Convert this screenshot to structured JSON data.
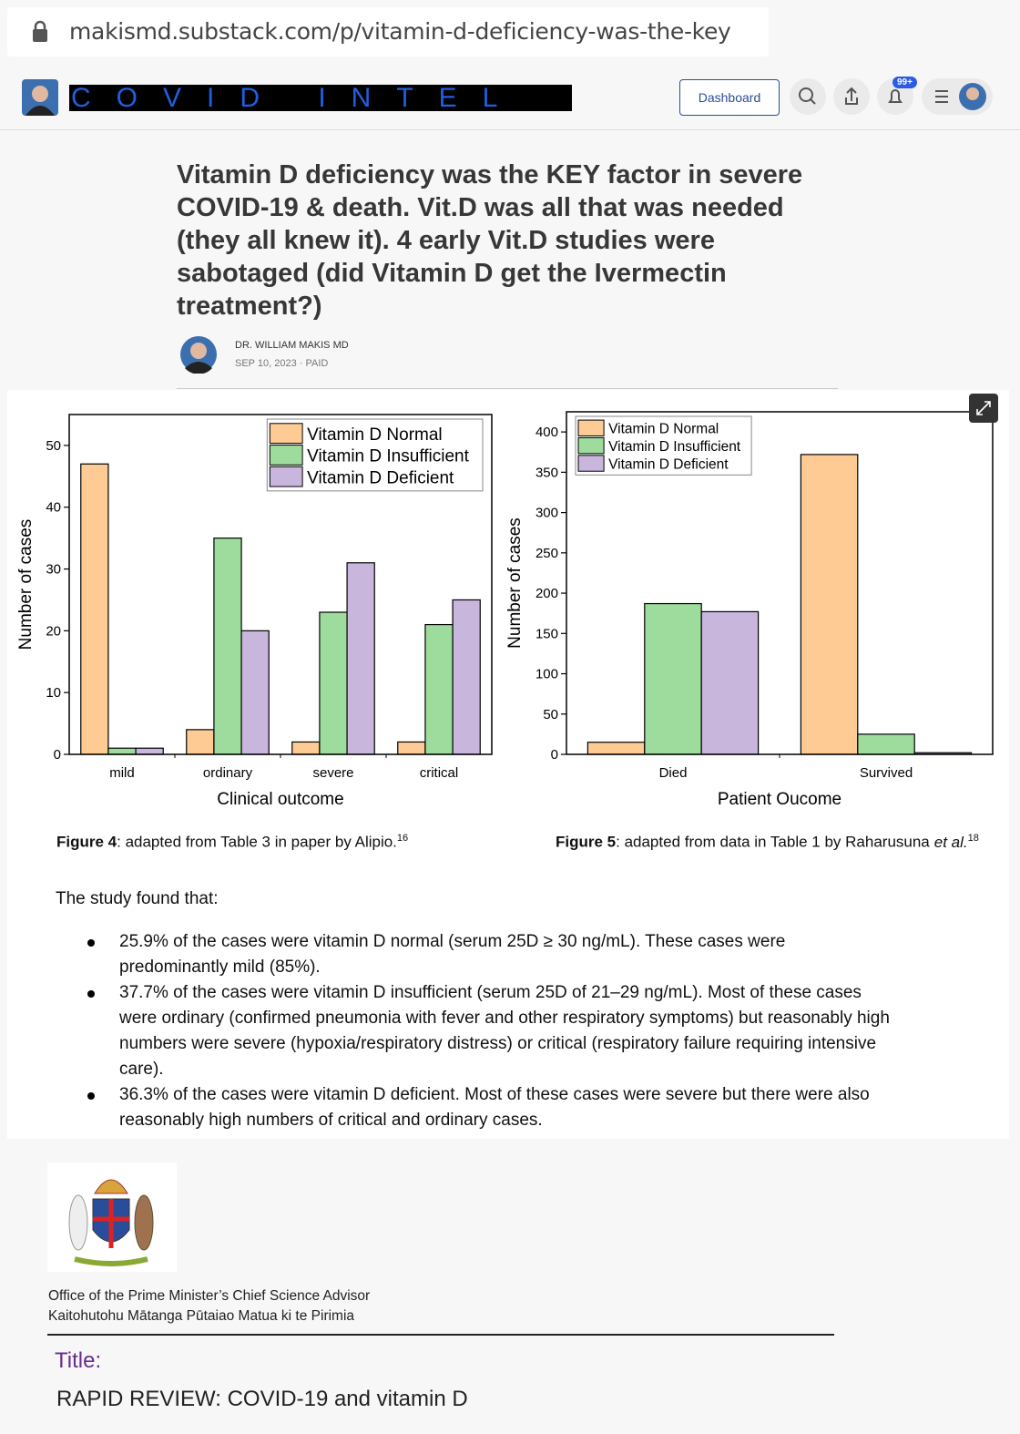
{
  "browser": {
    "url": "makismd.substack.com/p/vitamin-d-deficiency-was-the-key"
  },
  "header": {
    "publication": "COVID INTEL",
    "dashboard": "Dashboard",
    "notifications": "99+"
  },
  "article": {
    "title": "Vitamin D deficiency was the KEY factor in severe COVID-19 & death. Vit.D was all that was needed (they all knew it). 4 early Vit.D studies were sabotaged (did Vitamin D get the Ivermectin treatment?)",
    "author": "DR. WILLIAM MAKIS MD",
    "meta": "SEP 10, 2023 · PAID"
  },
  "chart_data": [
    {
      "type": "bar",
      "categories": [
        "mild",
        "ordinary",
        "severe",
        "critical"
      ],
      "series": [
        {
          "name": "Vitamin D Normal",
          "color": "#fdcb93",
          "values": [
            47,
            4,
            2,
            2
          ]
        },
        {
          "name": "Vitamin D Insufficient",
          "color": "#9edc9e",
          "values": [
            1,
            35,
            23,
            21
          ]
        },
        {
          "name": "Vitamin D Deficient",
          "color": "#c9b6dd",
          "values": [
            1,
            20,
            31,
            25
          ]
        }
      ],
      "xlabel": "Clinical outcome",
      "ylabel": "Number of cases",
      "ylim": [
        0,
        55
      ],
      "yticks": [
        0,
        10,
        20,
        30,
        40,
        50
      ],
      "legend": "upper right",
      "grid": false
    },
    {
      "type": "bar",
      "categories": [
        "Died",
        "Survived"
      ],
      "series": [
        {
          "name": "Vitamin D Normal",
          "color": "#fdcb93",
          "values": [
            15,
            372
          ]
        },
        {
          "name": "Vitamin D Insufficient",
          "color": "#9edc9e",
          "values": [
            187,
            25
          ]
        },
        {
          "name": "Vitamin D Deficient",
          "color": "#c9b6dd",
          "values": [
            177,
            2
          ]
        }
      ],
      "xlabel": "Patient Oucome",
      "ylabel": "Number of cases",
      "ylim": [
        0,
        425
      ],
      "yticks": [
        0,
        50,
        100,
        150,
        200,
        250,
        300,
        350,
        400
      ],
      "legend": "upper left",
      "grid": false
    }
  ],
  "captions": [
    {
      "label": "Figure 4",
      "text": ": adapted from Table 3 in paper by Alipio.",
      "ref": "16"
    },
    {
      "label": "Figure 5",
      "text": ": adapted from data in Table 1 by Raharusuna",
      "emphasis": "et al.",
      "ref": "18"
    }
  ],
  "body": {
    "intro": "The study found that:",
    "bullets": [
      "25.9% of the cases were vitamin D normal (serum 25D ≥ 30 ng/mL). These cases were predominantly mild (85%).",
      "37.7% of the cases were vitamin D insufficient (serum 25D of 21–29 ng/mL). Most of these cases were ordinary (confirmed pneumonia with fever and other respiratory symptoms) but reasonably high numbers were severe (hypoxia/respiratory distress) or critical (respiratory failure requiring intensive care).",
      "36.3% of the cases were vitamin D deficient. Most of these cases were severe but there were also reasonably high numbers of critical and ordinary cases."
    ]
  },
  "document": {
    "office": [
      "Office of the Prime Minister’s Chief Science Advisor",
      "Kaitohutohu Mātanga Pūtaiao Matua ki te Pirimia"
    ],
    "title_label": "Title:",
    "title": "RAPID REVIEW: COVID-19 and vitamin D"
  }
}
